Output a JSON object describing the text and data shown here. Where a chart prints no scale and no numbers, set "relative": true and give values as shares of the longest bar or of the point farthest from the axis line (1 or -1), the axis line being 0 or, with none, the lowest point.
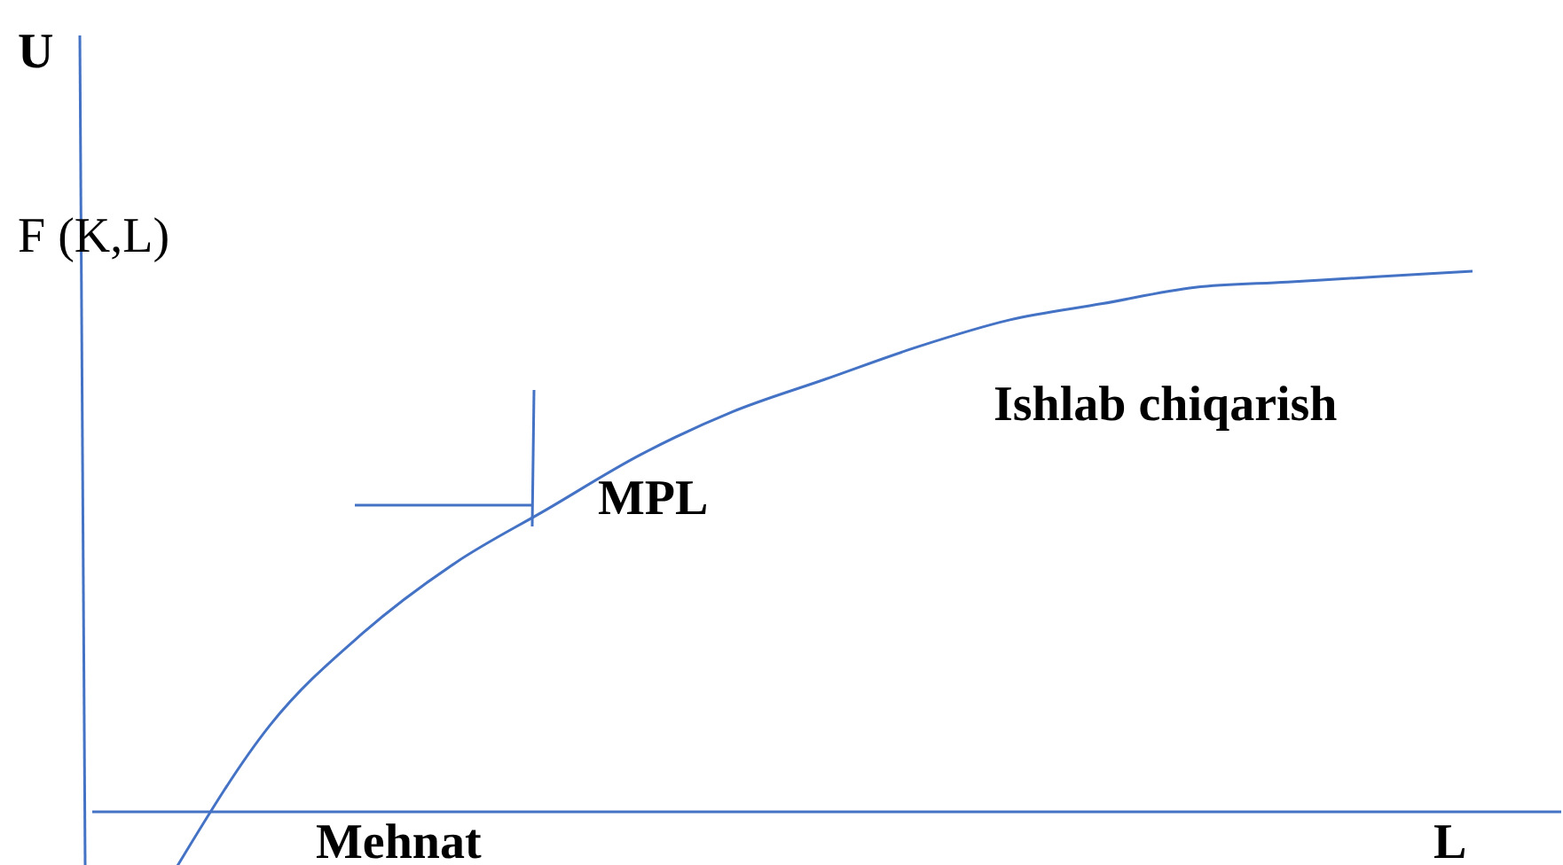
{
  "chart_data": {
    "type": "line",
    "relative": true,
    "ylabel": "U",
    "xlabel": "L",
    "annotations": [
      "F (K,L)",
      "Ishlab chiqarish",
      "MPL",
      "Mehnat"
    ],
    "ref_lines": [
      {
        "axis": "y",
        "value": 0,
        "color": "#4472c4"
      }
    ],
    "categories": [
      null,
      null,
      null,
      null,
      null,
      null,
      null,
      null,
      null,
      null,
      null,
      null,
      null,
      null,
      null
    ],
    "series": [
      {
        "color": "#4472c4",
        "values": [
          -0.1,
          0.16,
          0.33,
          0.46,
          0.56,
          0.66,
          0.74,
          0.8,
          0.86,
          0.91,
          0.94,
          0.97,
          0.98,
          0.99,
          1.0
        ]
      }
    ]
  }
}
